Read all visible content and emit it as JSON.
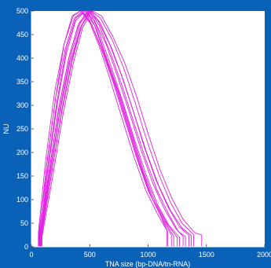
{
  "chart_data": {
    "type": "line",
    "xlabel": "TNA size (bp-DNA/tn-RNA)",
    "ylabel": "NU",
    "xlim": [
      0,
      2000
    ],
    "ylim": [
      0,
      500
    ],
    "x_ticks": [
      "0",
      "500",
      "1000",
      "1500",
      "2000"
    ],
    "y_ticks": [
      "0",
      "50",
      "100",
      "150",
      "200",
      "250",
      "300",
      "350",
      "400",
      "450",
      "500"
    ],
    "grid": false,
    "legend": "none",
    "colors": {
      "background": "#0a62b8",
      "plot_area": "#ffffff",
      "series": "#e020e0",
      "axis": "#ffffff"
    },
    "series": [
      {
        "values": [
          [
            60,
            0
          ],
          [
            60,
            30
          ],
          [
            120,
            180
          ],
          [
            200,
            330
          ],
          [
            280,
            430
          ],
          [
            360,
            490
          ],
          [
            420,
            500
          ],
          [
            500,
            480
          ],
          [
            600,
            420
          ],
          [
            700,
            350
          ],
          [
            800,
            270
          ],
          [
            900,
            190
          ],
          [
            1000,
            120
          ],
          [
            1100,
            70
          ],
          [
            1170,
            30
          ],
          [
            1170,
            0
          ]
        ]
      },
      {
        "values": [
          [
            65,
            0
          ],
          [
            65,
            25
          ],
          [
            130,
            170
          ],
          [
            210,
            320
          ],
          [
            290,
            420
          ],
          [
            370,
            485
          ],
          [
            440,
            500
          ],
          [
            520,
            470
          ],
          [
            620,
            410
          ],
          [
            720,
            340
          ],
          [
            820,
            260
          ],
          [
            920,
            180
          ],
          [
            1020,
            110
          ],
          [
            1120,
            60
          ],
          [
            1200,
            25
          ],
          [
            1200,
            0
          ]
        ]
      },
      {
        "values": [
          [
            70,
            0
          ],
          [
            70,
            20
          ],
          [
            140,
            160
          ],
          [
            220,
            300
          ],
          [
            300,
            410
          ],
          [
            380,
            480
          ],
          [
            460,
            500
          ],
          [
            540,
            470
          ],
          [
            640,
            400
          ],
          [
            740,
            330
          ],
          [
            840,
            250
          ],
          [
            940,
            170
          ],
          [
            1040,
            100
          ],
          [
            1140,
            55
          ],
          [
            1220,
            22
          ],
          [
            1220,
            0
          ]
        ]
      },
      {
        "values": [
          [
            75,
            0
          ],
          [
            75,
            20
          ],
          [
            150,
            155
          ],
          [
            230,
            290
          ],
          [
            320,
            400
          ],
          [
            400,
            470
          ],
          [
            480,
            500
          ],
          [
            560,
            460
          ],
          [
            660,
            390
          ],
          [
            760,
            320
          ],
          [
            860,
            240
          ],
          [
            960,
            160
          ],
          [
            1060,
            95
          ],
          [
            1160,
            50
          ],
          [
            1250,
            20
          ],
          [
            1250,
            0
          ]
        ]
      },
      {
        "values": [
          [
            80,
            0
          ],
          [
            80,
            22
          ],
          [
            160,
            150
          ],
          [
            240,
            280
          ],
          [
            330,
            390
          ],
          [
            420,
            465
          ],
          [
            500,
            500
          ],
          [
            580,
            455
          ],
          [
            680,
            385
          ],
          [
            780,
            310
          ],
          [
            880,
            230
          ],
          [
            980,
            155
          ],
          [
            1080,
            90
          ],
          [
            1180,
            45
          ],
          [
            1270,
            20
          ],
          [
            1270,
            0
          ]
        ]
      },
      {
        "values": [
          [
            60,
            0
          ],
          [
            60,
            24
          ],
          [
            140,
            170
          ],
          [
            220,
            310
          ],
          [
            300,
            420
          ],
          [
            380,
            485
          ],
          [
            460,
            500
          ],
          [
            540,
            480
          ],
          [
            640,
            430
          ],
          [
            740,
            360
          ],
          [
            840,
            285
          ],
          [
            940,
            205
          ],
          [
            1040,
            135
          ],
          [
            1140,
            80
          ],
          [
            1240,
            38
          ],
          [
            1300,
            22
          ],
          [
            1300,
            0
          ]
        ]
      },
      {
        "values": [
          [
            70,
            0
          ],
          [
            70,
            24
          ],
          [
            150,
            160
          ],
          [
            240,
            300
          ],
          [
            330,
            410
          ],
          [
            410,
            475
          ],
          [
            490,
            500
          ],
          [
            570,
            480
          ],
          [
            670,
            430
          ],
          [
            770,
            365
          ],
          [
            870,
            290
          ],
          [
            970,
            210
          ],
          [
            1070,
            140
          ],
          [
            1170,
            85
          ],
          [
            1270,
            42
          ],
          [
            1350,
            24
          ],
          [
            1350,
            0
          ]
        ]
      },
      {
        "values": [
          [
            80,
            0
          ],
          [
            80,
            20
          ],
          [
            170,
            150
          ],
          [
            260,
            290
          ],
          [
            350,
            400
          ],
          [
            430,
            470
          ],
          [
            510,
            500
          ],
          [
            590,
            485
          ],
          [
            690,
            440
          ],
          [
            790,
            380
          ],
          [
            890,
            305
          ],
          [
            990,
            225
          ],
          [
            1090,
            155
          ],
          [
            1190,
            95
          ],
          [
            1290,
            50
          ],
          [
            1390,
            26
          ],
          [
            1390,
            0
          ]
        ]
      },
      {
        "values": [
          [
            90,
            0
          ],
          [
            90,
            20
          ],
          [
            180,
            145
          ],
          [
            270,
            280
          ],
          [
            360,
            390
          ],
          [
            440,
            465
          ],
          [
            520,
            500
          ],
          [
            600,
            490
          ],
          [
            700,
            445
          ],
          [
            800,
            390
          ],
          [
            900,
            320
          ],
          [
            1000,
            240
          ],
          [
            1100,
            165
          ],
          [
            1200,
            105
          ],
          [
            1300,
            58
          ],
          [
            1400,
            30
          ],
          [
            1460,
            25
          ],
          [
            1460,
            0
          ]
        ]
      },
      {
        "values": [
          [
            65,
            0
          ],
          [
            65,
            22
          ],
          [
            130,
            175
          ],
          [
            210,
            320
          ],
          [
            280,
            430
          ],
          [
            350,
            490
          ],
          [
            420,
            500
          ],
          [
            500,
            475
          ],
          [
            590,
            420
          ],
          [
            680,
            350
          ],
          [
            780,
            270
          ],
          [
            880,
            190
          ],
          [
            980,
            120
          ],
          [
            1080,
            70
          ],
          [
            1160,
            35
          ],
          [
            1160,
            0
          ]
        ]
      },
      {
        "values": [
          [
            75,
            0
          ],
          [
            75,
            22
          ],
          [
            160,
            160
          ],
          [
            250,
            300
          ],
          [
            340,
            410
          ],
          [
            420,
            475
          ],
          [
            500,
            500
          ],
          [
            580,
            470
          ],
          [
            680,
            410
          ],
          [
            780,
            340
          ],
          [
            880,
            262
          ],
          [
            980,
            185
          ],
          [
            1080,
            118
          ],
          [
            1180,
            68
          ],
          [
            1260,
            32
          ],
          [
            1320,
            22
          ],
          [
            1320,
            0
          ]
        ]
      },
      {
        "values": [
          [
            85,
            0
          ],
          [
            85,
            20
          ],
          [
            170,
            150
          ],
          [
            260,
            285
          ],
          [
            350,
            395
          ],
          [
            430,
            468
          ],
          [
            510,
            500
          ],
          [
            590,
            475
          ],
          [
            690,
            420
          ],
          [
            790,
            352
          ],
          [
            890,
            275
          ],
          [
            990,
            198
          ],
          [
            1090,
            130
          ],
          [
            1190,
            78
          ],
          [
            1290,
            40
          ],
          [
            1370,
            24
          ],
          [
            1370,
            0
          ]
        ]
      }
    ]
  }
}
